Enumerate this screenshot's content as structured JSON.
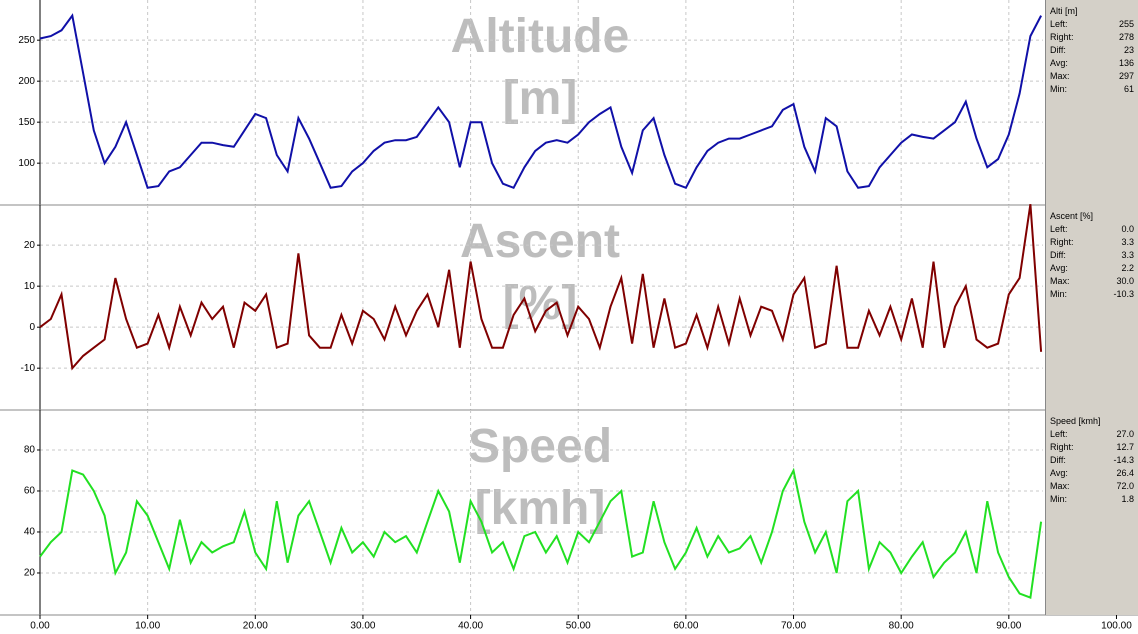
{
  "chart_data": [
    {
      "type": "line",
      "title": "Altitude [m]",
      "color": "#1010a8",
      "x": [
        0,
        1,
        2,
        3,
        4,
        5,
        6,
        7,
        8,
        9,
        10,
        11,
        12,
        13,
        14,
        15,
        16,
        17,
        18,
        19,
        20,
        21,
        22,
        23,
        24,
        25,
        26,
        27,
        28,
        29,
        30,
        31,
        32,
        33,
        34,
        35,
        36,
        37,
        38,
        39,
        40,
        41,
        42,
        43,
        44,
        45,
        46,
        47,
        48,
        49,
        50,
        51,
        52,
        53,
        54,
        55,
        56,
        57,
        58,
        59,
        60,
        61,
        62,
        63,
        64,
        65,
        66,
        67,
        68,
        69,
        70,
        71,
        72,
        73,
        74,
        75,
        76,
        77,
        78,
        79,
        80,
        81,
        82,
        83,
        84,
        85,
        86,
        87,
        88,
        89,
        90,
        91,
        92,
        93
      ],
      "values": [
        252,
        255,
        262,
        280,
        210,
        140,
        100,
        120,
        150,
        110,
        70,
        72,
        90,
        95,
        110,
        125,
        125,
        122,
        120,
        140,
        160,
        155,
        110,
        90,
        155,
        130,
        100,
        70,
        72,
        90,
        100,
        115,
        125,
        128,
        128,
        132,
        150,
        168,
        150,
        95,
        150,
        150,
        100,
        75,
        70,
        95,
        115,
        125,
        128,
        125,
        135,
        150,
        160,
        168,
        120,
        88,
        140,
        155,
        110,
        75,
        70,
        95,
        115,
        125,
        130,
        130,
        135,
        140,
        145,
        165,
        172,
        120,
        90,
        155,
        145,
        90,
        70,
        72,
        95,
        110,
        125,
        135,
        132,
        130,
        140,
        150,
        175,
        130,
        95,
        105,
        135,
        185,
        255,
        280
      ],
      "ylim": [
        49,
        299
      ],
      "yticks": [
        100,
        150,
        200,
        250
      ],
      "grid": true,
      "stats": {
        "heading": "Alti [m]",
        "rows": [
          [
            "Left:",
            "255"
          ],
          [
            "Right:",
            "278"
          ],
          [
            "Diff:",
            "23"
          ],
          [
            "Avg:",
            "136"
          ],
          [
            "Max:",
            "297"
          ],
          [
            "Min:",
            "61"
          ]
        ]
      }
    },
    {
      "type": "line",
      "title": "Ascent [%]",
      "color": "#800000",
      "x": [
        0,
        1,
        2,
        3,
        4,
        5,
        6,
        7,
        8,
        9,
        10,
        11,
        12,
        13,
        14,
        15,
        16,
        17,
        18,
        19,
        20,
        21,
        22,
        23,
        24,
        25,
        26,
        27,
        28,
        29,
        30,
        31,
        32,
        33,
        34,
        35,
        36,
        37,
        38,
        39,
        40,
        41,
        42,
        43,
        44,
        45,
        46,
        47,
        48,
        49,
        50,
        51,
        52,
        53,
        54,
        55,
        56,
        57,
        58,
        59,
        60,
        61,
        62,
        63,
        64,
        65,
        66,
        67,
        68,
        69,
        70,
        71,
        72,
        73,
        74,
        75,
        76,
        77,
        78,
        79,
        80,
        81,
        82,
        83,
        84,
        85,
        86,
        87,
        88,
        89,
        90,
        91,
        92,
        93
      ],
      "values": [
        0,
        2,
        8,
        -10,
        -7,
        -5,
        -3,
        12,
        2,
        -5,
        -4,
        3,
        -5,
        5,
        -2,
        6,
        2,
        5,
        -5,
        6,
        4,
        8,
        -5,
        -4,
        18,
        -2,
        -5,
        -5,
        3,
        -4,
        4,
        2,
        -3,
        5,
        -2,
        4,
        8,
        0,
        14,
        -5,
        16,
        2,
        -5,
        -5,
        3,
        7,
        -1,
        4,
        6,
        -2,
        5,
        2,
        -5,
        5,
        12,
        -4,
        13,
        -5,
        7,
        -5,
        -4,
        3,
        -5,
        5,
        -4,
        7,
        -2,
        5,
        4,
        -3,
        8,
        12,
        -5,
        -4,
        15,
        -5,
        -5,
        4,
        -2,
        5,
        -3,
        7,
        -5,
        16,
        -5,
        5,
        10,
        -3,
        -5,
        -4,
        8,
        12,
        30,
        -6
      ],
      "ylim": [
        -20.2,
        29.8
      ],
      "yticks": [
        -10,
        0,
        10,
        20
      ],
      "grid": true,
      "stats": {
        "heading": "Ascent [%]",
        "rows": [
          [
            "Left:",
            "0.0"
          ],
          [
            "Right:",
            "3.3"
          ],
          [
            "Diff:",
            "3.3"
          ],
          [
            "Avg:",
            "2.2"
          ],
          [
            "Max:",
            "30.0"
          ],
          [
            "Min:",
            "-10.3"
          ]
        ]
      }
    },
    {
      "type": "line",
      "title": "Speed [kmh]",
      "color": "#22e022",
      "x": [
        0,
        1,
        2,
        3,
        4,
        5,
        6,
        7,
        8,
        9,
        10,
        11,
        12,
        13,
        14,
        15,
        16,
        17,
        18,
        19,
        20,
        21,
        22,
        23,
        24,
        25,
        26,
        27,
        28,
        29,
        30,
        31,
        32,
        33,
        34,
        35,
        36,
        37,
        38,
        39,
        40,
        41,
        42,
        43,
        44,
        45,
        46,
        47,
        48,
        49,
        50,
        51,
        52,
        53,
        54,
        55,
        56,
        57,
        58,
        59,
        60,
        61,
        62,
        63,
        64,
        65,
        66,
        67,
        68,
        69,
        70,
        71,
        72,
        73,
        74,
        75,
        76,
        77,
        78,
        79,
        80,
        81,
        82,
        83,
        84,
        85,
        86,
        87,
        88,
        89,
        90,
        91,
        92,
        93
      ],
      "values": [
        28,
        35,
        40,
        70,
        68,
        60,
        48,
        20,
        30,
        55,
        48,
        35,
        22,
        46,
        25,
        35,
        30,
        33,
        35,
        50,
        30,
        22,
        55,
        25,
        48,
        55,
        40,
        25,
        42,
        30,
        35,
        28,
        40,
        35,
        38,
        30,
        45,
        60,
        50,
        25,
        55,
        45,
        30,
        35,
        22,
        38,
        40,
        30,
        38,
        25,
        40,
        35,
        45,
        55,
        60,
        28,
        30,
        55,
        35,
        22,
        30,
        42,
        28,
        38,
        30,
        32,
        38,
        25,
        40,
        60,
        70,
        45,
        30,
        40,
        20,
        55,
        60,
        22,
        35,
        30,
        20,
        28,
        35,
        18,
        25,
        30,
        40,
        20,
        55,
        30,
        18,
        10,
        8,
        45
      ],
      "ylim": [
        -0.5,
        99.5
      ],
      "yticks": [
        20,
        40,
        60,
        80
      ],
      "grid": true,
      "xlim": [
        0,
        102
      ],
      "xticks": [
        {
          "value": 0,
          "label": "0.00"
        },
        {
          "value": 10,
          "label": "10.00"
        },
        {
          "value": 20,
          "label": "20.00"
        },
        {
          "value": 30,
          "label": "30.00"
        },
        {
          "value": 40,
          "label": "40.00"
        },
        {
          "value": 50,
          "label": "50.00"
        },
        {
          "value": 60,
          "label": "60.00"
        },
        {
          "value": 70,
          "label": "70.00"
        },
        {
          "value": 80,
          "label": "80.00"
        },
        {
          "value": 90,
          "label": "90.00"
        },
        {
          "value": 100,
          "label": "100.00"
        }
      ],
      "stats": {
        "heading": "Speed [kmh]",
        "rows": [
          [
            "Left:",
            "27.0"
          ],
          [
            "Right:",
            "12.7"
          ],
          [
            "Diff:",
            "-14.3"
          ],
          [
            "Avg:",
            "26.4"
          ],
          [
            "Max:",
            "72.0"
          ],
          [
            "Min:",
            "1.8"
          ]
        ]
      }
    }
  ]
}
